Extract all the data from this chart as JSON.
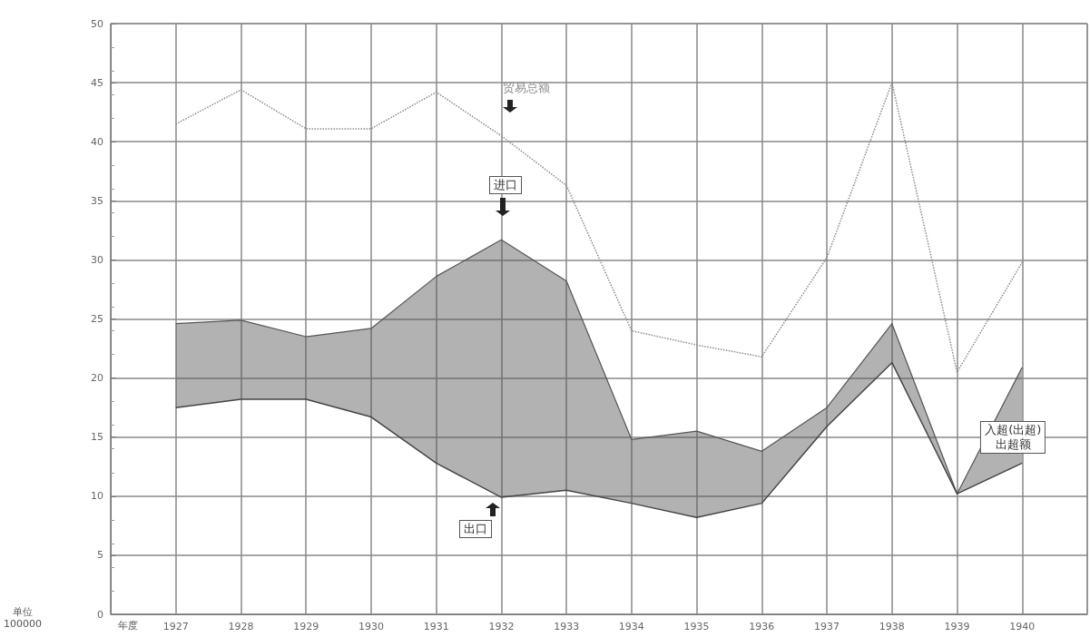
{
  "chart_data": {
    "type": "line",
    "xlabel": "年度",
    "ylabel": "单位\n100000",
    "categories": [
      "1927",
      "1928",
      "1929",
      "1930",
      "1931",
      "1932",
      "1933",
      "1934",
      "1935",
      "1936",
      "1937",
      "1938",
      "1939",
      "1940"
    ],
    "series": [
      {
        "name": "贸易总额",
        "color": "#8a8a8a",
        "line_style": "dotted",
        "values": [
          41.5,
          44.4,
          41.1,
          41.1,
          44.2,
          40.5,
          36.3,
          24,
          22.8,
          21.8,
          30.2,
          45,
          20.5,
          29.8
        ]
      },
      {
        "name": "进口",
        "type": "area",
        "color": "#555555",
        "values": [
          24.6,
          24.9,
          23.5,
          24.2,
          28.6,
          31.7,
          28.2,
          14.8,
          15.5,
          13.8,
          17.5,
          24.6,
          10.2,
          20.9
        ]
      },
      {
        "name": "出口",
        "type": "line",
        "color": "#444444",
        "values": [
          17.5,
          18.2,
          18.2,
          16.7,
          12.8,
          9.9,
          10.5,
          9.4,
          8.2,
          9.4,
          15.9,
          21.3,
          10.2,
          12.8
        ]
      }
    ],
    "annotations": [
      {
        "text": "入超(出超)\n出超额",
        "x": "1940",
        "y": 15
      }
    ],
    "ylim": [
      0,
      50
    ],
    "yticks": [
      0,
      5,
      10,
      15,
      20,
      25,
      30,
      35,
      40,
      45,
      50
    ],
    "grid": true,
    "marker": "none"
  }
}
